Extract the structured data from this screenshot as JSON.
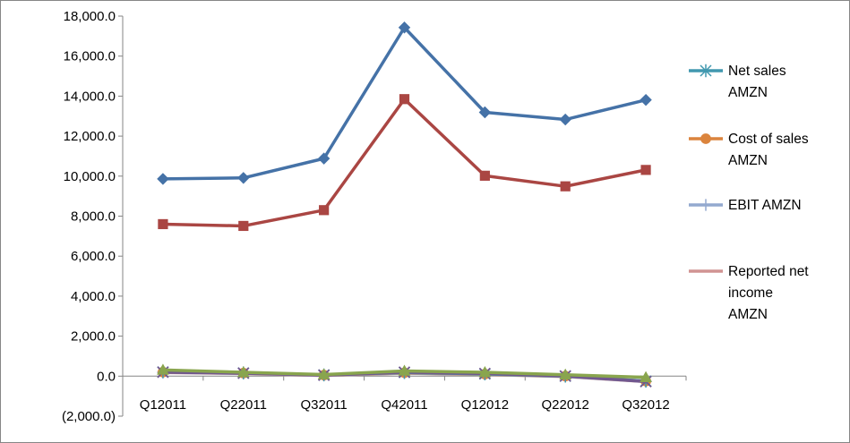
{
  "chart_data": {
    "type": "line",
    "title": "",
    "xlabel": "",
    "ylabel": "",
    "categories": [
      "Q12011",
      "Q22011",
      "Q32011",
      "Q42011",
      "Q12012",
      "Q22012",
      "Q32012"
    ],
    "ylim": [
      -2000,
      18000
    ],
    "y_ticks": [
      -2000,
      0,
      2000,
      4000,
      6000,
      8000,
      10000,
      12000,
      14000,
      16000,
      18000
    ],
    "y_tick_labels": [
      "(2,000.0)",
      "0.0",
      "2,000.0",
      "4,000.0",
      "6,000.0",
      "8,000.0",
      "10,000.0",
      "12,000.0",
      "14,000.0",
      "16,000.0",
      "18,000.0"
    ],
    "grid": false,
    "legend_position": "right",
    "series": [
      {
        "key": "s1",
        "legend": false,
        "values": [
          9860,
          9910,
          10880,
          17430,
          13190,
          12830,
          13810
        ],
        "color": "#4572A7",
        "marker": "diamond"
      },
      {
        "key": "s2",
        "legend": false,
        "values": [
          7600,
          7510,
          8300,
          13850,
          10020,
          9490,
          10310
        ],
        "color": "#AA4643",
        "marker": "square"
      },
      {
        "key": "s3",
        "legend": false,
        "values": [
          310,
          190,
          80,
          260,
          190,
          70,
          -60
        ],
        "color": "#89A54E",
        "marker": "triangle"
      },
      {
        "key": "s4",
        "legend": false,
        "values": [
          200,
          150,
          50,
          200,
          130,
          10,
          -270
        ],
        "color": "#71588F",
        "marker": "x"
      },
      {
        "key": "s5",
        "legend": true,
        "name": "Net sales AMZN",
        "name_lines": [
          "Net sales",
          "AMZN"
        ],
        "values": [
          210,
          160,
          60,
          180,
          110,
          0,
          -250
        ],
        "color": "#4198AF",
        "marker": "star"
      },
      {
        "key": "s6",
        "legend": true,
        "name": "Cost of sales AMZN",
        "name_lines": [
          "Cost of sales",
          "AMZN"
        ],
        "values": [
          200,
          150,
          50,
          170,
          100,
          0,
          -250
        ],
        "color": "#DB843D",
        "marker": "circle"
      },
      {
        "key": "s7",
        "legend": true,
        "name": "EBIT AMZN",
        "name_lines": [
          "EBIT AMZN"
        ],
        "values": [
          190,
          140,
          40,
          160,
          90,
          -10,
          -260
        ],
        "color": "#93A9CF",
        "marker": "plus"
      },
      {
        "key": "s8",
        "legend": true,
        "name": "Reported net income AMZN",
        "name_lines": [
          "Reported net",
          "income",
          "AMZN"
        ],
        "values": [
          180,
          130,
          30,
          150,
          80,
          -20,
          -270
        ],
        "color": "#D19392",
        "marker": "none"
      }
    ]
  }
}
